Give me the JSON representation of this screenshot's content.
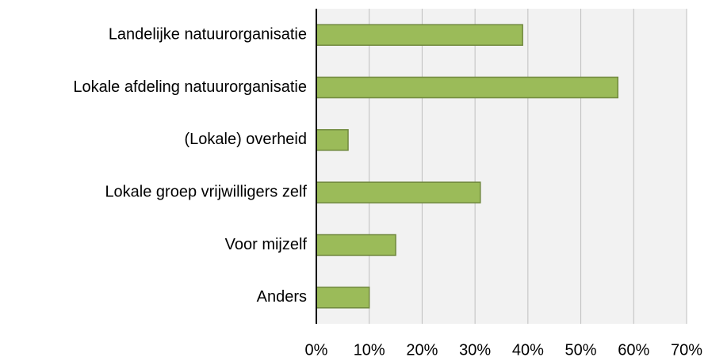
{
  "chart_data": {
    "type": "bar",
    "orientation": "horizontal",
    "categories": [
      "Landelijke natuurorganisatie",
      "Lokale afdeling natuurorganisatie",
      "(Lokale) overheid",
      "Lokale groep vrijwilligers zelf",
      "Voor mijzelf",
      "Anders"
    ],
    "values": [
      39,
      57,
      6,
      31,
      15,
      10
    ],
    "color": "#9bbb59",
    "xlim": [
      0,
      70
    ],
    "xticks": [
      {
        "value": 0,
        "label": "0%"
      },
      {
        "value": 10,
        "label": "10%"
      },
      {
        "value": 20,
        "label": "20%"
      },
      {
        "value": 30,
        "label": "30%"
      },
      {
        "value": 40,
        "label": "40%"
      },
      {
        "value": 50,
        "label": "50%"
      },
      {
        "value": 60,
        "label": "60%"
      },
      {
        "value": 70,
        "label": "70%"
      }
    ],
    "grid": true
  }
}
